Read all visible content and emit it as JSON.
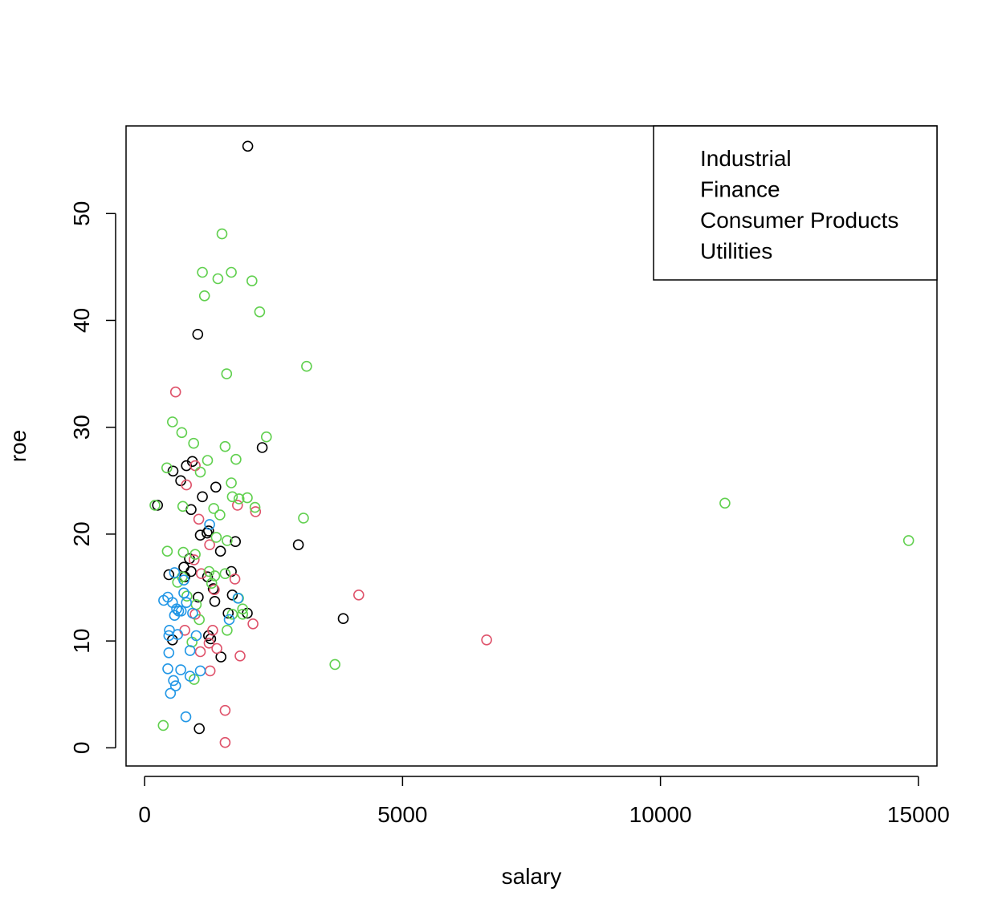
{
  "chart_data": {
    "type": "scatter",
    "xlabel": "salary",
    "ylabel": "roe",
    "xlim": [
      -360,
      15360
    ],
    "ylim": [
      -1.7,
      58.2
    ],
    "x_ticks": [
      0,
      5000,
      10000,
      15000
    ],
    "y_ticks": [
      0,
      10,
      20,
      30,
      40,
      50
    ],
    "marker": "open-circle",
    "grid": false,
    "legend_position": "top-right",
    "legend_markers_shown": false,
    "series": [
      {
        "name": "Industrial",
        "color": "#000000",
        "x": [
          2000,
          1030,
          2280,
          925,
          810,
          550,
          700,
          1380,
          1120,
          900,
          1240,
          1210,
          1080,
          1470,
          1760,
          2980,
          870,
          760,
          470,
          780,
          900,
          1680,
          1220,
          1330,
          1360,
          1700,
          1040,
          1620,
          1990,
          3850,
          1280,
          1240,
          540,
          1480,
          1060,
          250
        ],
        "y": [
          56.3,
          38.7,
          28.1,
          26.8,
          26.4,
          25.9,
          25.0,
          24.4,
          23.5,
          22.3,
          20.3,
          20.1,
          19.9,
          18.4,
          19.3,
          19.0,
          17.7,
          16.9,
          16.2,
          16.0,
          16.5,
          16.5,
          16.0,
          14.9,
          13.7,
          14.3,
          14.1,
          12.6,
          12.6,
          12.1,
          10.2,
          10.5,
          10.1,
          8.5,
          1.8,
          22.7
        ]
      },
      {
        "name": "Finance",
        "color": "#DF536B",
        "x": [
          600,
          810,
          980,
          1050,
          2150,
          1260,
          1800,
          1750,
          960,
          1350,
          4150,
          6630,
          1100,
          1320,
          2100,
          1250,
          1400,
          1850,
          1270,
          1080,
          1560,
          1560,
          780,
          980
        ],
        "y": [
          33.3,
          24.6,
          26.4,
          21.4,
          22.1,
          19.0,
          22.7,
          15.8,
          17.6,
          14.8,
          14.3,
          10.1,
          16.3,
          11.0,
          11.6,
          9.8,
          9.3,
          8.6,
          7.2,
          9.0,
          3.5,
          0.5,
          11.0,
          12.5
        ]
      },
      {
        "name": "Consumer Products",
        "color": "#61D04F",
        "x": [
          1500,
          1120,
          1680,
          1420,
          2080,
          1160,
          2230,
          1590,
          3140,
          540,
          720,
          430,
          950,
          1560,
          2360,
          1220,
          1770,
          1080,
          1680,
          1700,
          1460,
          1340,
          1990,
          3080,
          2140,
          1830,
          740,
          1390,
          1600,
          750,
          980,
          1250,
          730,
          1360,
          1560,
          1820,
          1900,
          1700,
          1000,
          1900,
          440,
          1060,
          1600,
          960,
          3690,
          920,
          360,
          11250,
          14810,
          640,
          200,
          820,
          1300
        ],
        "y": [
          48.1,
          44.5,
          44.5,
          43.9,
          43.7,
          42.3,
          40.8,
          35.0,
          35.7,
          30.5,
          29.5,
          26.2,
          28.5,
          28.2,
          29.1,
          26.9,
          27.0,
          25.8,
          24.8,
          23.5,
          21.8,
          22.4,
          23.4,
          21.5,
          22.5,
          23.3,
          22.6,
          19.7,
          19.4,
          18.3,
          18.1,
          16.5,
          16.0,
          16.1,
          16.3,
          14.0,
          13.0,
          12.5,
          13.4,
          12.5,
          18.4,
          12.0,
          11.0,
          6.4,
          7.8,
          9.9,
          2.1,
          22.9,
          19.4,
          15.5,
          22.7,
          14.2,
          15.4
        ]
      },
      {
        "name": "Utilities",
        "color": "#2297E6",
        "x": [
          1260,
          370,
          450,
          540,
          620,
          710,
          810,
          930,
          580,
          660,
          760,
          480,
          640,
          880,
          1810,
          1640,
          1000,
          470,
          560,
          600,
          1080,
          700,
          500,
          450,
          470,
          800,
          880,
          760,
          580
        ],
        "y": [
          20.9,
          13.8,
          14.1,
          13.6,
          13.0,
          12.8,
          13.6,
          12.6,
          12.4,
          12.8,
          14.5,
          11.0,
          10.6,
          9.1,
          14.0,
          12.0,
          10.5,
          8.9,
          6.3,
          5.8,
          7.2,
          7.3,
          5.1,
          7.4,
          10.5,
          2.9,
          6.7,
          15.7,
          16.4
        ]
      }
    ]
  }
}
